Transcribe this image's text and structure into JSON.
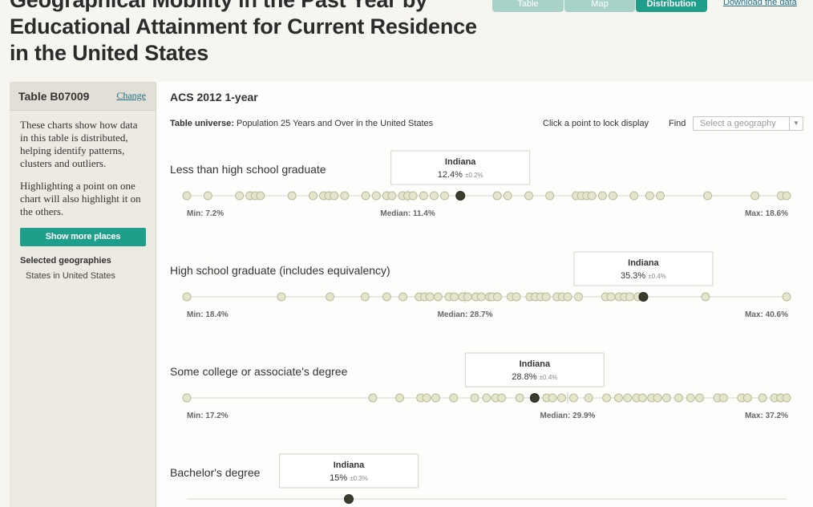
{
  "header": {
    "title": "Geographical Mobility in the Past Year by Educational Attainment for Current Residence in the United States",
    "tabs": [
      {
        "label": "Table"
      },
      {
        "label": "Map"
      },
      {
        "label": "Distribution"
      }
    ],
    "download_label": "Download the data"
  },
  "sidebar": {
    "table_label": "Table B07009",
    "change_label": "Change",
    "description": "These charts show how data in this table is distributed, helping identify patterns, clusters and outliers.",
    "highlight_note": "Highlighting a point on one chart will also highlight it on the others.",
    "show_more_label": "Show more places",
    "selected_label": "Selected geographies",
    "selected_item": "States in United States"
  },
  "main": {
    "dataset": "ACS 2012 1-year",
    "universe_label": "Table universe:",
    "universe_value": "Population 25 Years and Over in the United States",
    "lock_note": "Click a point to lock display",
    "find_label": "Find",
    "find_placeholder": "Select a geography"
  },
  "colors": {
    "accent": "#1f9e8b",
    "accent_light": "#a8d2c8",
    "point_fill": "#e4e5cc",
    "point_stroke": "#b9bc98",
    "highlight": "#3a3d2c"
  },
  "chart_data": [
    {
      "type": "scatter",
      "title": "Less than high school graduate",
      "min": 7.2,
      "median": 11.4,
      "max": 18.6,
      "min_label": "Min: 7.2%",
      "median_label": "Median: 11.4%",
      "max_label": "Max: 18.6%",
      "highlight": {
        "name": "Indiana",
        "value": 12.4,
        "value_label": "12.4%",
        "moe_label": "±0.2%"
      },
      "points": [
        7.2,
        7.6,
        8.2,
        8.4,
        8.5,
        8.6,
        9.2,
        9.6,
        9.8,
        9.9,
        10.0,
        10.2,
        10.6,
        10.8,
        11.0,
        11.1,
        11.3,
        11.4,
        11.5,
        11.7,
        11.9,
        12.1,
        12.4,
        13.1,
        13.3,
        13.7,
        14.1,
        14.6,
        14.7,
        14.8,
        14.9,
        15.1,
        15.3,
        15.7,
        16.0,
        16.2,
        17.1,
        18.0,
        18.5,
        18.6
      ]
    },
    {
      "type": "scatter",
      "title": "High school graduate (includes equivalency)",
      "min": 18.4,
      "median": 28.7,
      "max": 40.6,
      "min_label": "Min: 18.4%",
      "median_label": "Median: 28.7%",
      "max_label": "Max: 40.6%",
      "highlight": {
        "name": "Indiana",
        "value": 35.3,
        "value_label": "35.3%",
        "moe_label": "±0.4%"
      },
      "points": [
        18.4,
        21.9,
        23.7,
        25.0,
        25.8,
        26.4,
        27.0,
        27.2,
        27.4,
        27.7,
        28.1,
        28.3,
        28.6,
        28.8,
        29.1,
        29.3,
        29.6,
        29.7,
        29.9,
        30.4,
        30.6,
        31.1,
        31.3,
        31.5,
        31.7,
        32.1,
        32.3,
        32.5,
        32.9,
        33.9,
        34.1,
        34.4,
        34.6,
        34.8,
        35.1,
        35.3,
        37.6,
        40.6
      ]
    },
    {
      "type": "scatter",
      "title": "Some college or associate's degree",
      "min": 17.2,
      "median": 29.9,
      "max": 37.2,
      "min_label": "Min: 17.2%",
      "median_label": "Median: 29.9%",
      "max_label": "Max: 37.2%",
      "highlight": {
        "name": "Indiana",
        "value": 28.8,
        "value_label": "28.8%",
        "moe_label": "±0.4%"
      },
      "points": [
        17.2,
        23.4,
        24.3,
        25.0,
        25.2,
        25.5,
        26.1,
        26.8,
        27.2,
        27.5,
        27.7,
        28.3,
        28.8,
        29.2,
        29.4,
        29.7,
        30.1,
        30.6,
        31.2,
        31.6,
        31.9,
        32.2,
        32.4,
        32.7,
        32.9,
        33.2,
        33.6,
        34.0,
        34.3,
        34.9,
        35.1,
        35.7,
        35.9,
        36.4,
        36.8,
        37.0,
        37.2
      ]
    },
    {
      "type": "scatter",
      "title": "Bachelor's degree",
      "min": null,
      "median": null,
      "max": null,
      "min_label": "",
      "median_label": "",
      "max_label": "",
      "highlight": {
        "name": "Indiana",
        "value": 15,
        "value_label": "15%",
        "moe_label": "±0.3%"
      }
    }
  ]
}
